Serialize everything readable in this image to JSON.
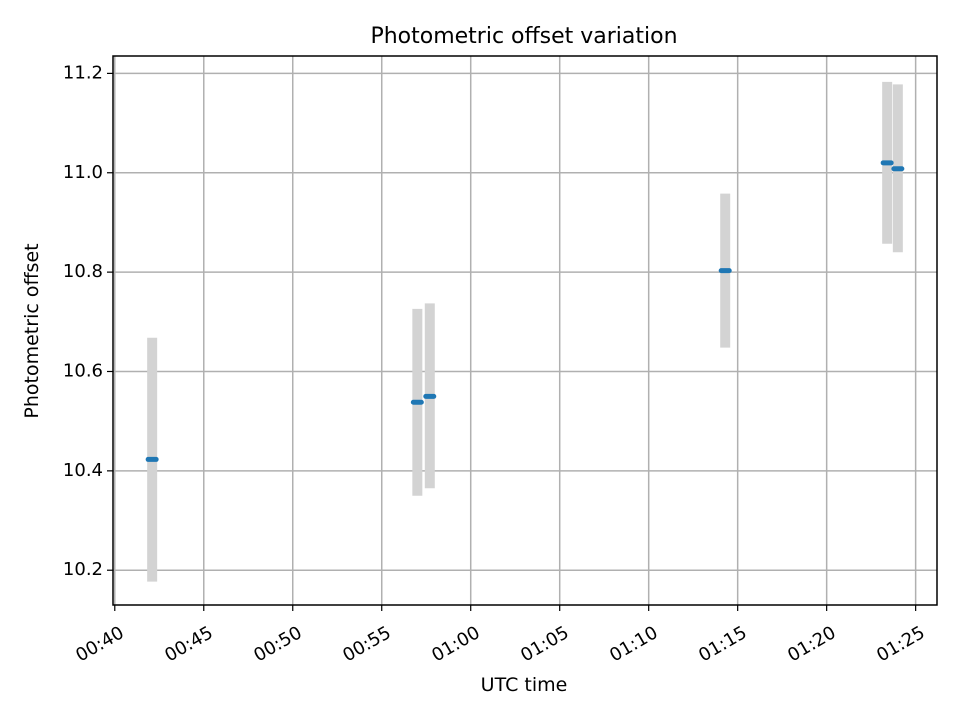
{
  "chart_data": {
    "type": "scatter",
    "title": "Photometric offset variation",
    "xlabel": "UTC time",
    "ylabel": "Photometric offset",
    "x_ticks": [
      "00:40",
      "00:45",
      "00:50",
      "00:55",
      "01:00",
      "01:05",
      "01:10",
      "01:15",
      "01:20",
      "01:25"
    ],
    "x_tick_minutes": [
      40,
      45,
      50,
      55,
      60,
      65,
      70,
      75,
      80,
      85
    ],
    "y_ticks": [
      "10.2",
      "10.4",
      "10.6",
      "10.8",
      "11.0",
      "11.2"
    ],
    "y_tick_values": [
      10.2,
      10.4,
      10.6,
      10.8,
      11.0,
      11.2
    ],
    "xlim_minutes": [
      39.9,
      86.2
    ],
    "ylim": [
      10.13,
      11.235
    ],
    "grid": true,
    "point_color": "#1f77b4",
    "errorbar_color": "#d3d3d3",
    "points": [
      {
        "time": "00:42:06",
        "y": 10.423,
        "yerr_low": 10.177,
        "yerr_high": 10.668
      },
      {
        "time": "00:57:00",
        "y": 10.538,
        "yerr_low": 10.35,
        "yerr_high": 10.726
      },
      {
        "time": "00:57:42",
        "y": 10.55,
        "yerr_low": 10.365,
        "yerr_high": 10.737
      },
      {
        "time": "01:14:18",
        "y": 10.803,
        "yerr_low": 10.648,
        "yerr_high": 10.958
      },
      {
        "time": "01:23:24",
        "y": 11.02,
        "yerr_low": 10.857,
        "yerr_high": 11.183
      },
      {
        "time": "01:24:00",
        "y": 11.008,
        "yerr_low": 10.84,
        "yerr_high": 11.178
      }
    ]
  }
}
